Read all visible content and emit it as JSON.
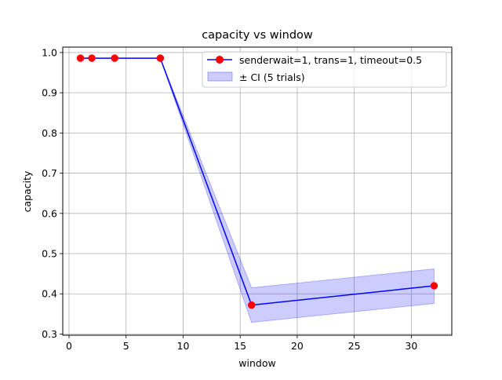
{
  "colors": {
    "line": "#0000ff",
    "marker": "#ff0000",
    "band": "#0000ff",
    "grid": "#b0b0b0"
  },
  "chart_data": {
    "type": "line",
    "title": "capacity vs window",
    "xlabel": "window",
    "ylabel": "capacity",
    "xlim": [
      -0.55,
      33.55
    ],
    "ylim": [
      0.297,
      1.0135
    ],
    "xticks": [
      0,
      5,
      10,
      15,
      20,
      25,
      30
    ],
    "yticks": [
      0.3,
      0.4,
      0.5,
      0.6,
      0.7,
      0.8,
      0.9,
      1.0
    ],
    "xtick_labels": [
      "0",
      "5",
      "10",
      "15",
      "20",
      "25",
      "30"
    ],
    "ytick_labels": [
      "0.3",
      "0.4",
      "0.5",
      "0.6",
      "0.7",
      "0.8",
      "0.9",
      "1.0"
    ],
    "grid": true,
    "legend_position": "top-right",
    "series": [
      {
        "name": "senderwait=1, trans=1, timeout=0.5",
        "x": [
          1,
          2,
          4,
          8,
          16,
          32
        ],
        "y": [
          0.986,
          0.986,
          0.986,
          0.986,
          0.372,
          0.42
        ]
      }
    ],
    "band": {
      "name": "± CI (5 trials)",
      "x": [
        1,
        2,
        4,
        8,
        16,
        32
      ],
      "lower": [
        0.986,
        0.986,
        0.986,
        0.986,
        0.329,
        0.376
      ],
      "upper": [
        0.986,
        0.986,
        0.986,
        0.986,
        0.415,
        0.462
      ]
    }
  }
}
